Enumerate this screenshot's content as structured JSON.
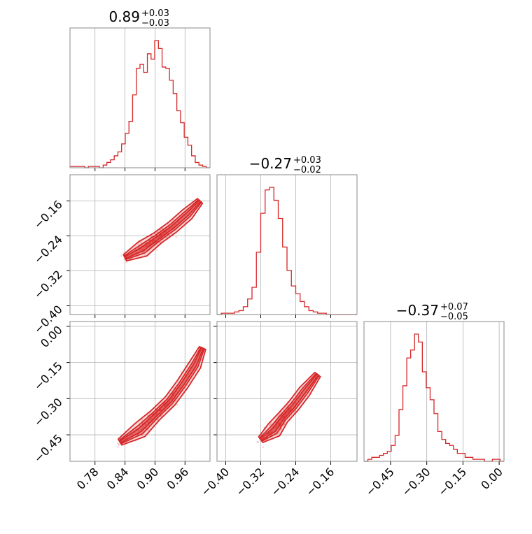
{
  "theme": {
    "color": "#d62728",
    "grid": "#b0b0b0",
    "frame": "#888888"
  },
  "titles": [
    {
      "value": "0.89",
      "plus": "+0.03",
      "minus": "−0.03"
    },
    {
      "value": "−0.27",
      "plus": "+0.03",
      "minus": "−0.02"
    },
    {
      "value": "−0.37",
      "plus": "+0.07",
      "minus": "−0.05"
    }
  ],
  "chart_data": {
    "type": "corner",
    "grid": true,
    "parameters": [
      {
        "range": [
          0.73,
          1.01
        ],
        "ticks": [
          0.78,
          0.84,
          0.9,
          0.96
        ],
        "tick_labels": [
          "0.78",
          "0.84",
          "0.90",
          "0.96"
        ]
      },
      {
        "range": [
          -0.42,
          -0.1
        ],
        "ticks": [
          -0.4,
          -0.32,
          -0.24,
          -0.16
        ],
        "tick_labels": [
          "−0.40",
          "−0.32",
          "−0.24",
          "−0.16"
        ]
      },
      {
        "range": [
          -0.56,
          0.02
        ],
        "ticks": [
          -0.45,
          -0.3,
          -0.15,
          0.0
        ],
        "tick_labels": [
          "−0.45",
          "−0.30",
          "−0.15",
          "0.00"
        ]
      }
    ],
    "histograms": [
      {
        "param": 0,
        "bins": [
          0.73,
          1.01
        ],
        "counts": [
          1,
          1,
          1,
          1,
          0,
          1,
          1,
          1,
          0,
          2,
          4,
          6,
          9,
          12,
          18,
          26,
          35,
          55,
          75,
          78,
          72,
          86,
          82,
          96,
          90,
          76,
          75,
          66,
          56,
          43,
          34,
          23,
          17,
          9,
          4,
          2,
          1,
          0
        ]
      },
      {
        "param": 1,
        "bins": [
          -0.42,
          -0.1
        ],
        "counts": [
          0,
          1,
          1,
          1,
          2,
          3,
          6,
          12,
          21,
          48,
          78,
          96,
          98,
          88,
          74,
          52,
          34,
          22,
          16,
          10,
          6,
          3,
          2,
          1,
          1,
          0,
          0,
          0,
          0,
          0,
          0,
          0
        ]
      },
      {
        "param": 2,
        "bins": [
          -0.56,
          0.02
        ],
        "counts": [
          0,
          1,
          2,
          2,
          3,
          4,
          5,
          8,
          13,
          26,
          38,
          52,
          56,
          64,
          60,
          45,
          37,
          31,
          24,
          15,
          11,
          9,
          8,
          6,
          4,
          4,
          2,
          2,
          1,
          1,
          1,
          0,
          0,
          1,
          1,
          0
        ]
      }
    ],
    "correlations": [
      {
        "x_param": 0,
        "y_param": 1,
        "trend": [
          [
            0.84,
            -0.29
          ],
          [
            0.875,
            -0.27
          ],
          [
            0.905,
            -0.245
          ],
          [
            0.935,
            -0.22
          ],
          [
            0.965,
            -0.19
          ],
          [
            0.99,
            -0.16
          ]
        ]
      },
      {
        "x_param": 0,
        "y_param": 2,
        "trend": [
          [
            0.83,
            -0.48
          ],
          [
            0.87,
            -0.43
          ],
          [
            0.9,
            -0.37
          ],
          [
            0.93,
            -0.31
          ],
          [
            0.955,
            -0.24
          ],
          [
            0.98,
            -0.16
          ],
          [
            0.995,
            -0.09
          ]
        ]
      },
      {
        "x_param": 1,
        "y_param": 2,
        "trend": [
          [
            -0.32,
            -0.47
          ],
          [
            -0.29,
            -0.43
          ],
          [
            -0.27,
            -0.38
          ],
          [
            -0.245,
            -0.33
          ],
          [
            -0.22,
            -0.27
          ],
          [
            -0.19,
            -0.2
          ]
        ]
      }
    ]
  }
}
